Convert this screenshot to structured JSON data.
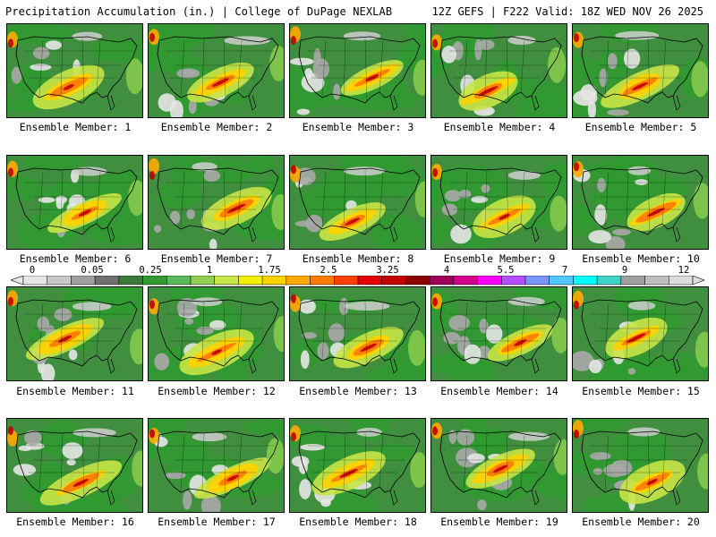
{
  "header": {
    "left_title": "Precipitation Accumulation (in.) | College of DuPage NEXLAB",
    "right_title": "12Z GEFS | F222 Valid: 18Z WED NOV 26 2025"
  },
  "members": [
    {
      "label": "Ensemble Member: 1"
    },
    {
      "label": "Ensemble Member: 2"
    },
    {
      "label": "Ensemble Member: 3"
    },
    {
      "label": "Ensemble Member: 4"
    },
    {
      "label": "Ensemble Member: 5"
    },
    {
      "label": "Ensemble Member: 6"
    },
    {
      "label": "Ensemble Member: 7"
    },
    {
      "label": "Ensemble Member: 8"
    },
    {
      "label": "Ensemble Member: 9"
    },
    {
      "label": "Ensemble Member: 10"
    },
    {
      "label": "Ensemble Member: 11"
    },
    {
      "label": "Ensemble Member: 12"
    },
    {
      "label": "Ensemble Member: 13"
    },
    {
      "label": "Ensemble Member: 14"
    },
    {
      "label": "Ensemble Member: 15"
    },
    {
      "label": "Ensemble Member: 16"
    },
    {
      "label": "Ensemble Member: 17"
    },
    {
      "label": "Ensemble Member: 18"
    },
    {
      "label": "Ensemble Member: 19"
    },
    {
      "label": "Ensemble Member: 20"
    }
  ],
  "color_scale": {
    "tick_labels": [
      "0",
      "0.05",
      "0.25",
      "1",
      "1.75",
      "2.5",
      "3.25",
      "4",
      "5.5",
      "7",
      "9",
      "12"
    ],
    "colors": [
      "#e6e6e6",
      "#c8c8c8",
      "#a0a0a0",
      "#707070",
      "#3c7a3c",
      "#2f9a2f",
      "#5cb85c",
      "#8fd14f",
      "#c8e646",
      "#f0f000",
      "#ffd200",
      "#ffaa00",
      "#ff7a00",
      "#ff4000",
      "#e60000",
      "#c00000",
      "#8c0000",
      "#a0005a",
      "#d2008c",
      "#ff00ff",
      "#b450ff",
      "#7896ff",
      "#50c8ff",
      "#00ffff",
      "#40d2c8",
      "#a0a0a0",
      "#bebebe",
      "#dcdcdc"
    ]
  }
}
